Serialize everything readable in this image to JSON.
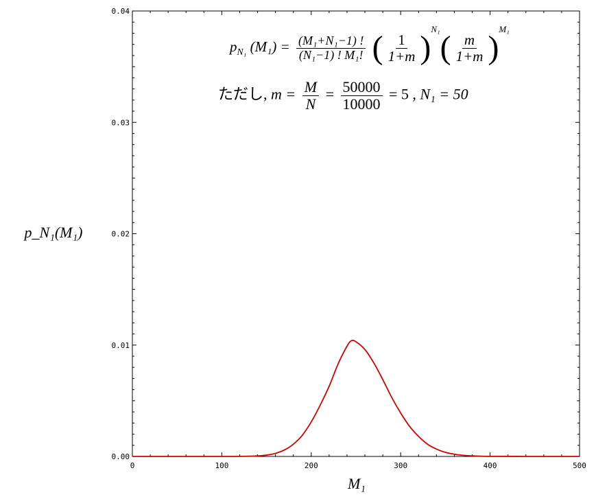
{
  "chart_data": {
    "type": "line",
    "xlabel": "M₁",
    "ylabel": "p_N₁(M₁)",
    "xlim": [
      0,
      500
    ],
    "ylim": [
      0,
      0.04
    ],
    "x_ticks": [
      "0",
      "100",
      "200",
      "300",
      "400",
      "500"
    ],
    "y_ticks": [
      "0.00",
      "0.01",
      "0.02",
      "0.03",
      "0.04"
    ],
    "grid": false,
    "series": [
      {
        "color": "#d40000",
        "x": [
          0,
          100,
          130,
          140,
          150,
          160,
          170,
          180,
          190,
          200,
          210,
          220,
          230,
          240,
          245,
          250,
          260,
          270,
          280,
          290,
          300,
          310,
          320,
          330,
          340,
          350,
          360,
          370,
          380,
          390,
          400,
          450,
          500
        ],
        "y": [
          0,
          0,
          2e-05,
          5e-05,
          0.00012,
          0.00028,
          0.00058,
          0.0011,
          0.0019,
          0.0031,
          0.0046,
          0.0063,
          0.0083,
          0.0099,
          0.0104,
          0.0103,
          0.0096,
          0.0084,
          0.0069,
          0.0053,
          0.0039,
          0.0027,
          0.0018,
          0.0011,
          0.00066,
          0.00037,
          0.0002,
          0.0001,
          5e-05,
          2e-05,
          1e-05,
          0,
          0
        ]
      }
    ]
  },
  "formula": {
    "lhs": "p",
    "lhs_sub": "N₁",
    "lhs_arg": "(M₁) =",
    "frac1_num": "(M₁+N₁−1) !",
    "frac1_den": "(N₁−1) ! M₁!",
    "frac2_num": "1",
    "frac2_den": "1+m",
    "exp1": "N₁",
    "frac3_num": "m",
    "frac3_den": "1+m",
    "exp2": "M₁"
  },
  "condition": {
    "prefix": "ただし,",
    "m_lhs": "m =",
    "frac_m_num": "M",
    "frac_m_den": "N",
    "eq": "=",
    "frac_v_num": "50000",
    "frac_v_den": "10000",
    "result": "= 5 ,",
    "n1": "N₁ = 50"
  }
}
